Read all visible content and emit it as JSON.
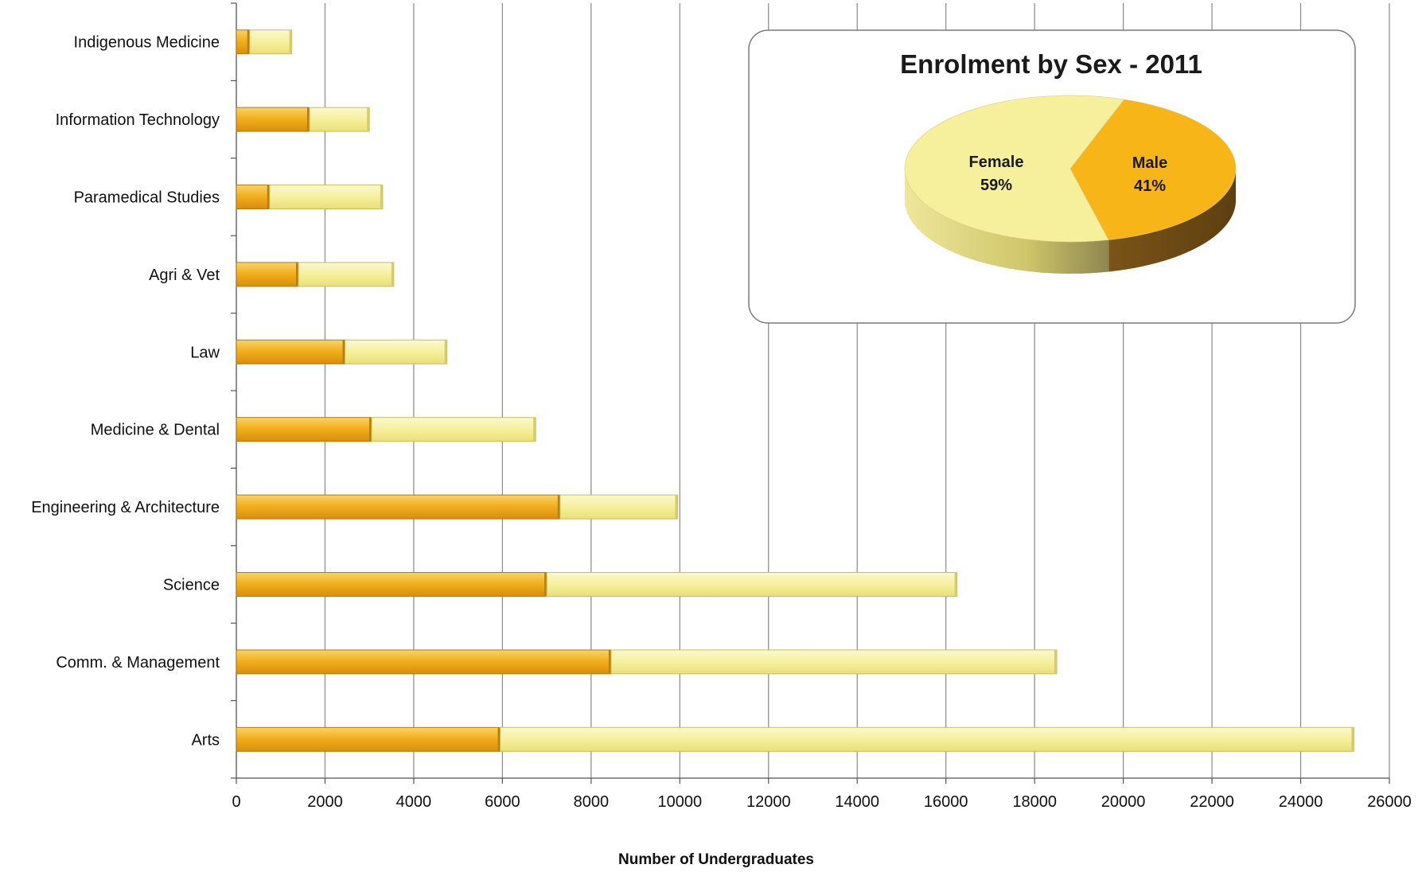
{
  "chart_data": [
    {
      "type": "bar",
      "orientation": "horizontal",
      "stacked": true,
      "title": "",
      "xlabel": "Number of Undergraduates",
      "ylabel": "",
      "xlim": [
        0,
        26000
      ],
      "x_ticks": [
        0,
        2000,
        4000,
        6000,
        8000,
        10000,
        12000,
        14000,
        16000,
        18000,
        20000,
        22000,
        24000,
        26000
      ],
      "grid": true,
      "categories": [
        "Indigenous Medicine",
        "Information Technology",
        "Paramedical Studies",
        "Agri & Vet",
        "Law",
        "Medicine & Dental",
        "Engineering & Architecture",
        "Science",
        "Comm. & Management",
        "Arts"
      ],
      "series": [
        {
          "values": [
            300,
            1650,
            750,
            1400,
            2450,
            3050,
            7300,
            7000,
            8450,
            5950
          ],
          "color": "#F2B01E"
        },
        {
          "values": [
            950,
            1350,
            2550,
            2150,
            2300,
            3700,
            2650,
            9250,
            10050,
            19250
          ],
          "color": "#F6F09C"
        }
      ]
    },
    {
      "type": "pie",
      "title": "Enrolment  by Sex - 2011",
      "slices": [
        {
          "label": "Female",
          "value": 59,
          "value_label": "59%",
          "color": "#F6F09C"
        },
        {
          "label": "Male",
          "value": 41,
          "value_label": "41%",
          "color": "#F7B517"
        }
      ]
    }
  ]
}
